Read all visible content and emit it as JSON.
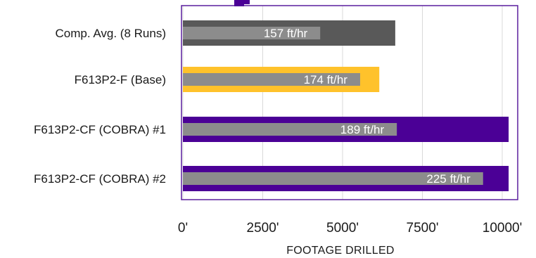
{
  "chart_data": {
    "type": "bar",
    "orientation": "horizontal",
    "categories": [
      "Comp. Avg. (8 Runs)",
      "F613P2-F (Base)",
      "F613P2-CF (COBRA) #1",
      "F613P2-CF (COBRA) #2"
    ],
    "series": [
      {
        "values": [
          6650,
          6150,
          10200,
          10200
        ],
        "colors": [
          "#595959",
          "#ffc22b",
          "#4b0096",
          "#4b0096"
        ]
      },
      {
        "values": [
          4300,
          5550,
          6700,
          9400
        ],
        "color": "#8c8c8c",
        "data_labels": [
          "157 ft/hr",
          "174 ft/hr",
          "189 ft/hr",
          "225 ft/hr"
        ]
      }
    ],
    "xlabel": "FOOTAGE DRILLED",
    "xlim": [
      0,
      10000
    ],
    "xticks": [
      0,
      2500,
      5000,
      7500,
      10000
    ],
    "xtick_labels": [
      "0'",
      "2500'",
      "5000'",
      "7500'",
      "10000'"
    ],
    "grid": true,
    "frame_color": "#5a1f9e"
  }
}
